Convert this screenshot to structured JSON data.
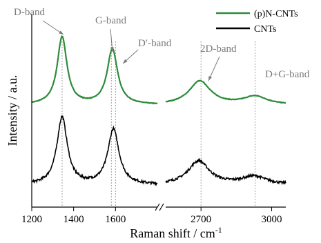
{
  "chart_data": {
    "type": "line",
    "xlabel": "Raman shift / cm",
    "xlabel_superscript": "-1",
    "ylabel": "Intensity / a.u.",
    "x_axis": {
      "broken": true,
      "segments": [
        {
          "range": [
            1200,
            1800
          ],
          "ticks": [
            1200,
            1400,
            1600
          ]
        },
        {
          "range": [
            2550,
            3060
          ],
          "ticks": [
            2700,
            3000
          ]
        }
      ]
    },
    "y_ticks_shown": false,
    "legend": {
      "placement": "top-right"
    },
    "series": [
      {
        "name": "(p)N-CNTs",
        "color": "#2e8b3a",
        "peaks": [
          {
            "x": 1345,
            "height": 1.0,
            "width": 28
          },
          {
            "x": 1585,
            "height": 0.82,
            "width": 30
          },
          {
            "x": 2695,
            "height": 0.35,
            "width": 55
          },
          {
            "x": 2930,
            "height": 0.12,
            "width": 60
          }
        ]
      },
      {
        "name": "CNTs",
        "color": "#000000",
        "peaks": [
          {
            "x": 1345,
            "height": 1.0,
            "width": 30
          },
          {
            "x": 1590,
            "height": 0.82,
            "width": 32
          },
          {
            "x": 2690,
            "height": 0.35,
            "width": 55
          },
          {
            "x": 2925,
            "height": 0.12,
            "width": 65
          }
        ]
      }
    ],
    "annotations": [
      {
        "label": "D-band",
        "x": 1345
      },
      {
        "label": "G-band",
        "x": 1580
      },
      {
        "label": "D′-band",
        "x": 1605
      },
      {
        "label": "2D-band",
        "x": 2700
      },
      {
        "label": "D+G-band",
        "x": 2930
      }
    ],
    "colors": {
      "grid_guides": "#8c8c8c",
      "annotations": "#7a7a7a",
      "axis": "#000000"
    }
  }
}
